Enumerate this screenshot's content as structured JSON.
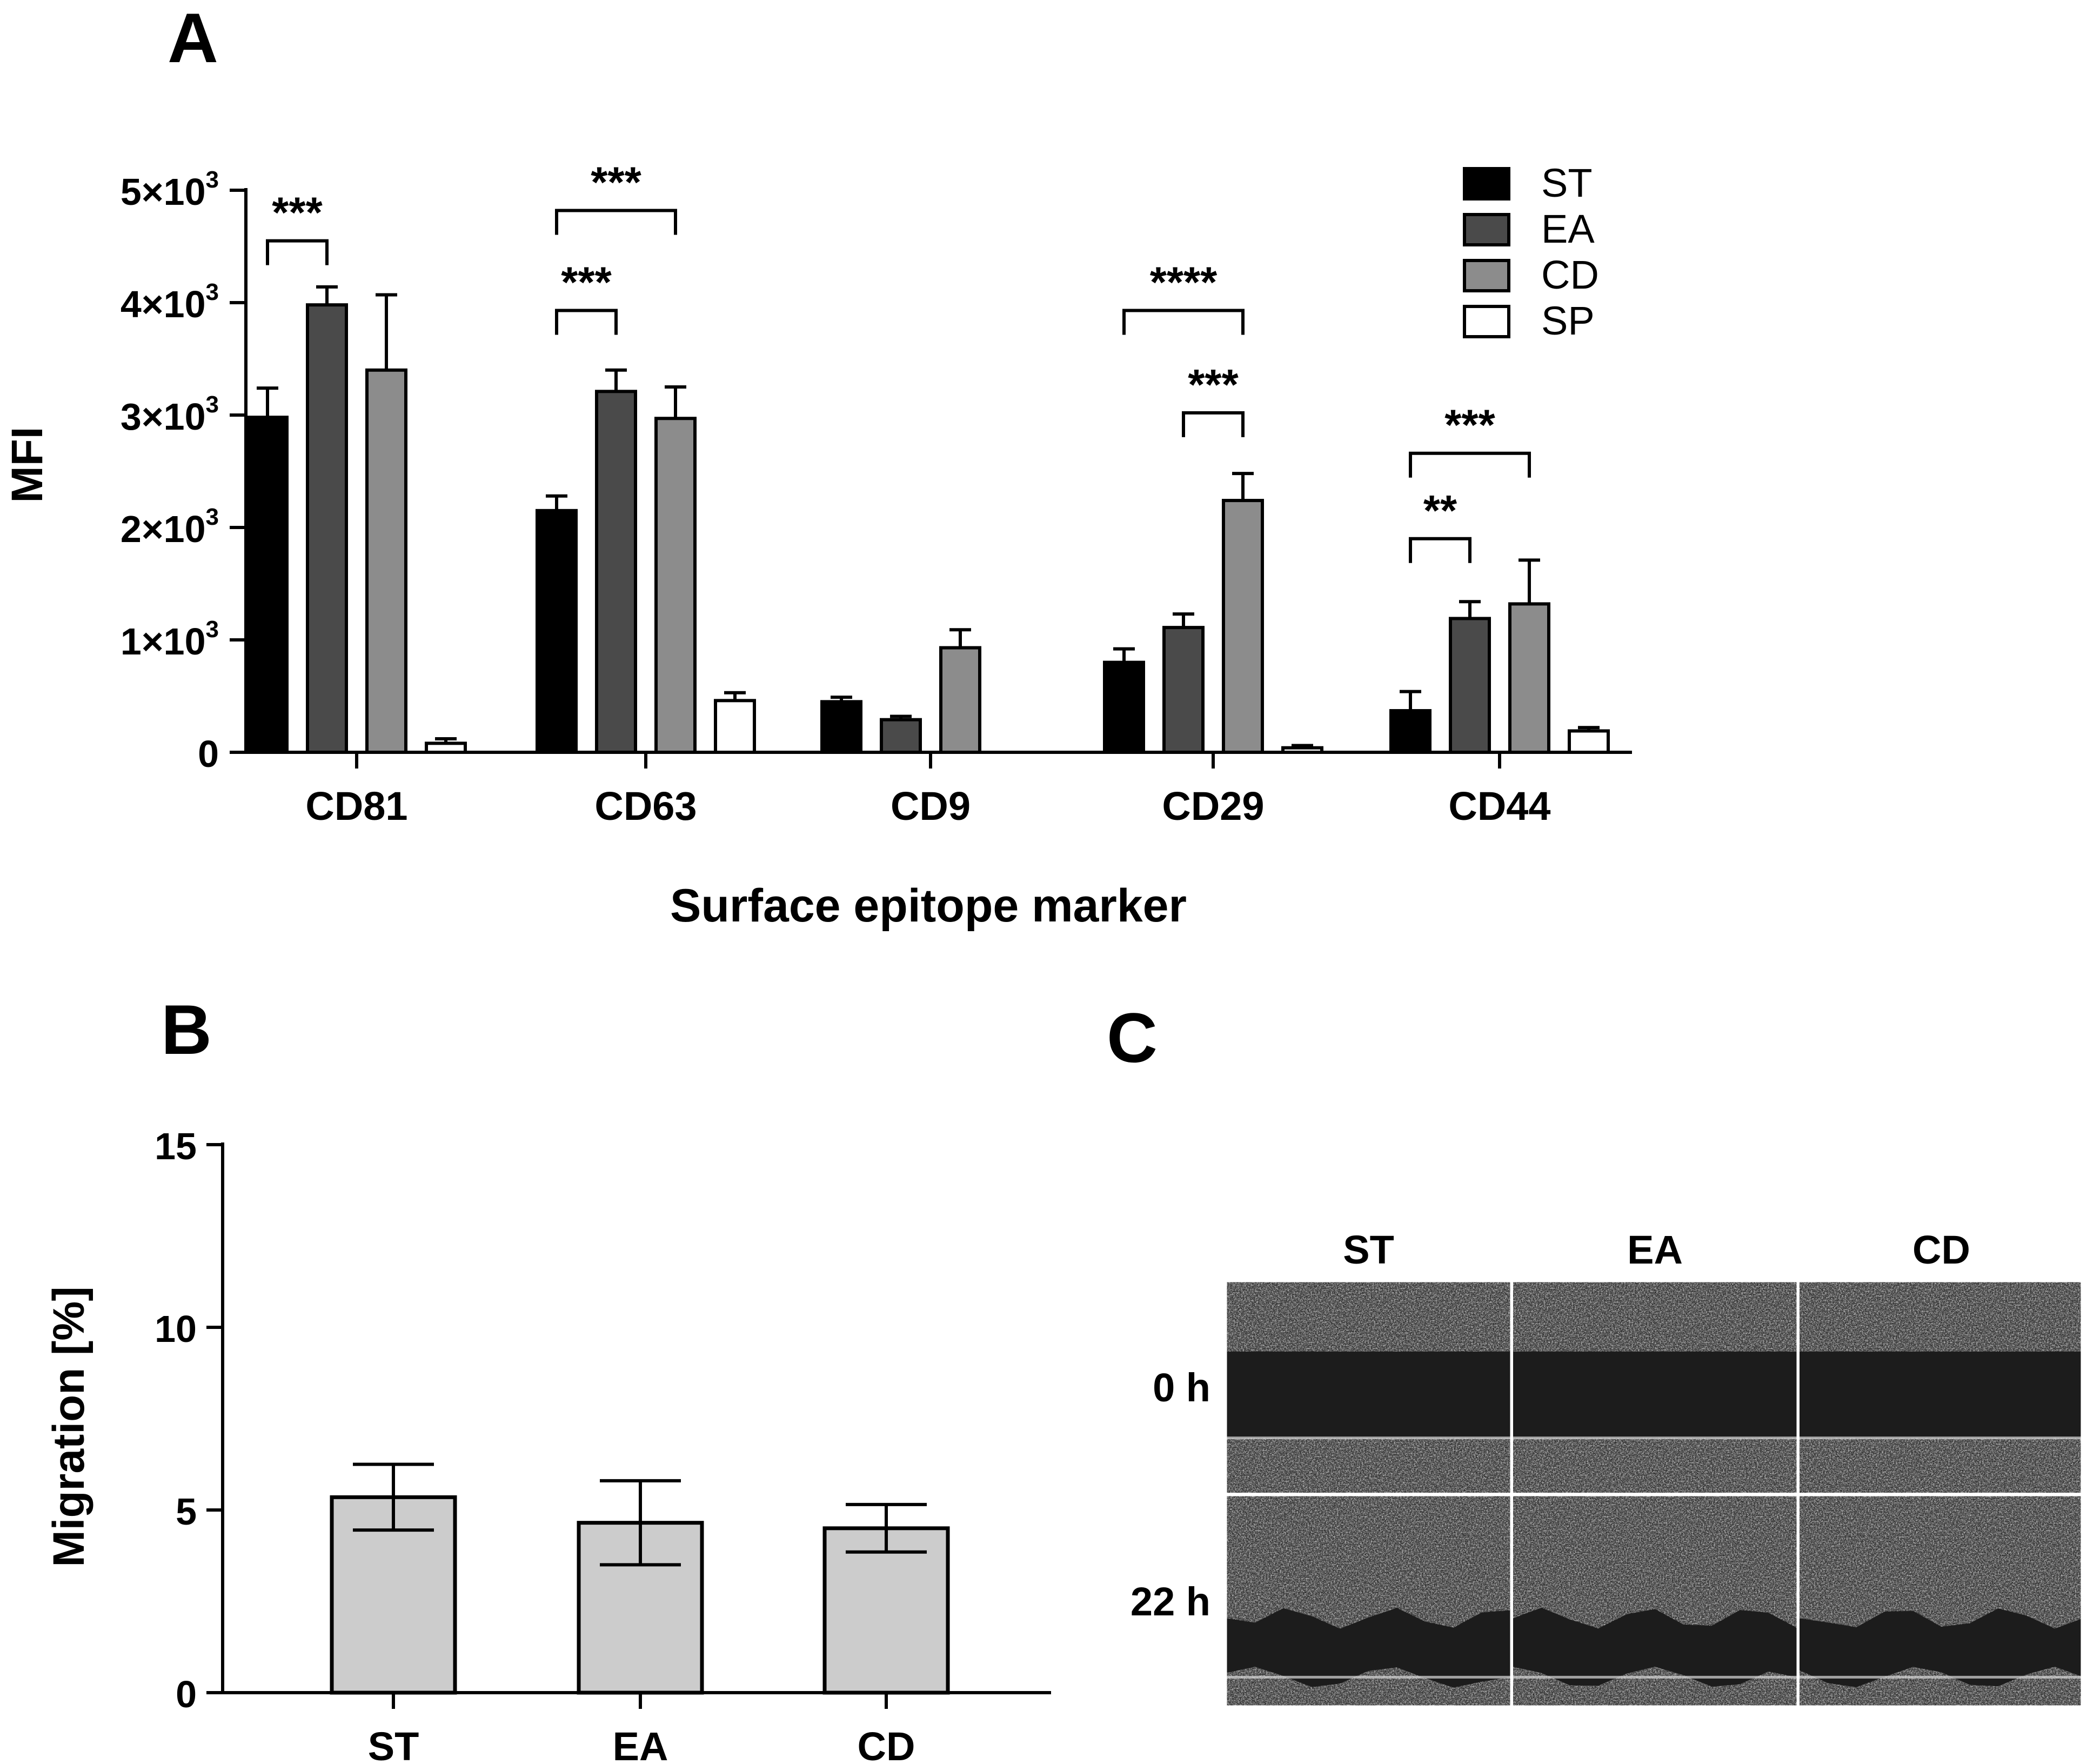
{
  "panels": {
    "a": "A",
    "b": "B",
    "c": "C"
  },
  "chart_data": [
    {
      "panel": "A",
      "type": "bar",
      "xlabel": "Surface epitope marker",
      "ylabel": "MFI",
      "ylim": [
        0,
        5000
      ],
      "yticks": [
        0,
        1000,
        2000,
        3000,
        4000,
        5000
      ],
      "ytick_labels": [
        {
          "mant": "0",
          "sup": ""
        },
        {
          "mant": "1×10",
          "sup": "3"
        },
        {
          "mant": "2×10",
          "sup": "3"
        },
        {
          "mant": "3×10",
          "sup": "3"
        },
        {
          "mant": "4×10",
          "sup": "3"
        },
        {
          "mant": "5×10",
          "sup": "3"
        }
      ],
      "categories": [
        "CD81",
        "CD63",
        "CD9",
        "CD29",
        "CD44"
      ],
      "series": [
        {
          "name": "ST",
          "color": "#000000",
          "values": [
            2980,
            2150,
            450,
            800,
            370
          ],
          "errors": [
            260,
            130,
            40,
            120,
            170
          ]
        },
        {
          "name": "EA",
          "color": "#4a4a4a",
          "values": [
            3980,
            3210,
            290,
            1110,
            1190
          ],
          "errors": [
            160,
            190,
            30,
            120,
            150
          ]
        },
        {
          "name": "CD",
          "color": "#8c8c8c",
          "values": [
            3400,
            2970,
            930,
            2240,
            1320
          ],
          "errors": [
            670,
            280,
            160,
            240,
            390
          ]
        },
        {
          "name": "SP",
          "color": "#ffffff",
          "values": [
            80,
            460,
            0,
            40,
            190
          ],
          "errors": [
            40,
            70,
            0,
            20,
            30
          ]
        }
      ],
      "significance": [
        {
          "category": 0,
          "from": "ST",
          "to": "EA",
          "label": "***",
          "level": 4550
        },
        {
          "category": 1,
          "from": "ST",
          "to": "EA",
          "label": "***",
          "level": 3930
        },
        {
          "category": 1,
          "from": "ST",
          "to": "CD",
          "label": "***",
          "level": 4820
        },
        {
          "category": 3,
          "from": "ST",
          "to": "CD",
          "label": "****",
          "level": 3930
        },
        {
          "category": 3,
          "from": "EA",
          "to": "CD",
          "label": "***",
          "level": 3020
        },
        {
          "category": 4,
          "from": "ST",
          "to": "CD",
          "label": "***",
          "level": 2660
        },
        {
          "category": 4,
          "from": "ST",
          "to": "EA",
          "label": "**",
          "level": 1900
        }
      ],
      "legend": "top-right"
    },
    {
      "panel": "B",
      "type": "bar",
      "xlabel": "",
      "ylabel": "Migration [%]",
      "ylim": [
        0,
        15
      ],
      "yticks": [
        0,
        5,
        10,
        15
      ],
      "categories": [
        "ST",
        "EA",
        "CD"
      ],
      "values": [
        5.35,
        4.65,
        4.5
      ],
      "errors": [
        0.9,
        1.15,
        0.65
      ],
      "color": "#cccccc"
    }
  ],
  "panel_c": {
    "columns": [
      "ST",
      "EA",
      "CD"
    ],
    "rows": [
      "0 h",
      "22 h"
    ]
  }
}
